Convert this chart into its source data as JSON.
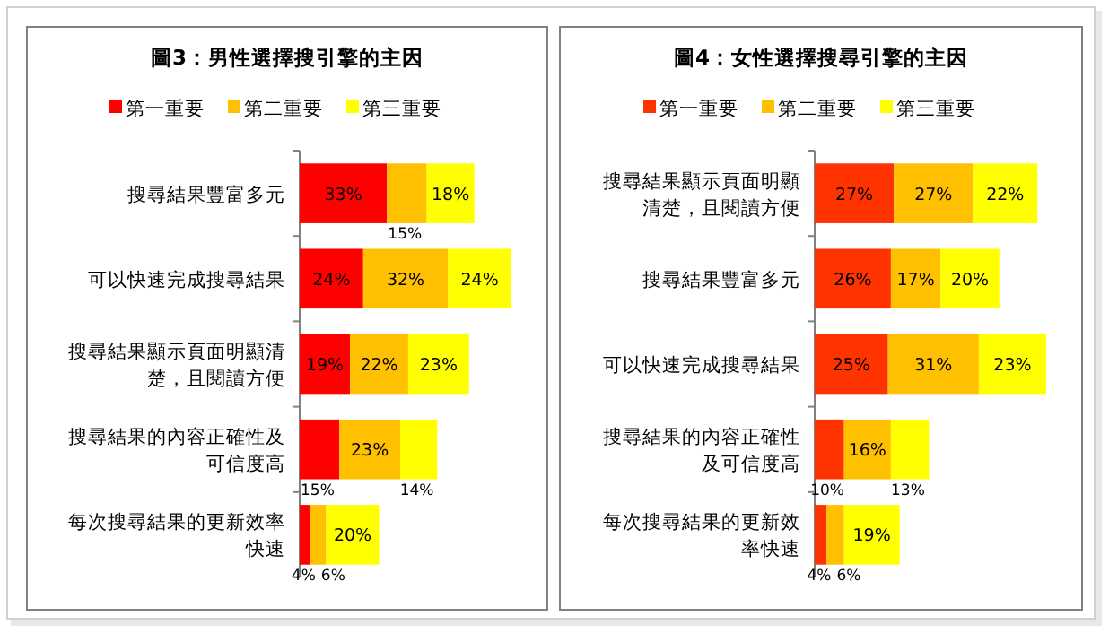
{
  "chart_data": [
    {
      "type": "bar",
      "orientation": "horizontal",
      "stacked": true,
      "title": "圖3：男性選擇搜引擎的主因",
      "legend": "top",
      "categories": [
        "搜尋結果豐富多元",
        "可以快速完成搜尋結果",
        "搜尋結果顯示頁面明顯清楚，且閱讀方便",
        "搜尋結果的內容正確性及可信度高",
        "每次搜尋結果的更新效率快速"
      ],
      "series": [
        {
          "name": "第一重要",
          "color": "#ff0000",
          "values": [
            33,
            24,
            19,
            15,
            4
          ],
          "value_labels": [
            "33%",
            "24%",
            "19%",
            "15%",
            "4%"
          ]
        },
        {
          "name": "第二重要",
          "color": "#ffc000",
          "values": [
            15,
            32,
            22,
            23,
            6
          ],
          "value_labels": [
            "15%",
            "32%",
            "22%",
            "23%",
            "6%"
          ]
        },
        {
          "name": "第三重要",
          "color": "#ffff00",
          "values": [
            18,
            24,
            23,
            14,
            20
          ],
          "value_labels": [
            "18%",
            "24%",
            "23%",
            "14%",
            "20%"
          ]
        }
      ]
    },
    {
      "type": "bar",
      "orientation": "horizontal",
      "stacked": true,
      "title": "圖4：女性選擇搜尋引擎的主因",
      "legend": "top",
      "categories": [
        "搜尋結果顯示頁面明顯清楚，且閱讀方便",
        "搜尋結果豐富多元",
        "可以快速完成搜尋結果",
        "搜尋結果的內容正確性及可信度高",
        "每次搜尋結果的更新效率快速"
      ],
      "series": [
        {
          "name": "第一重要",
          "color": "#ff3300",
          "values": [
            27,
            26,
            25,
            10,
            4
          ],
          "value_labels": [
            "27%",
            "26%",
            "25%",
            "10%",
            "4%"
          ]
        },
        {
          "name": "第二重要",
          "color": "#ffc000",
          "values": [
            27,
            17,
            31,
            16,
            6
          ],
          "value_labels": [
            "27%",
            "17%",
            "31%",
            "16%",
            "6%"
          ]
        },
        {
          "name": "第三重要",
          "color": "#ffff00",
          "values": [
            22,
            20,
            23,
            13,
            19
          ],
          "value_labels": [
            "22%",
            "20%",
            "23%",
            "13%",
            "19%"
          ]
        }
      ]
    }
  ]
}
